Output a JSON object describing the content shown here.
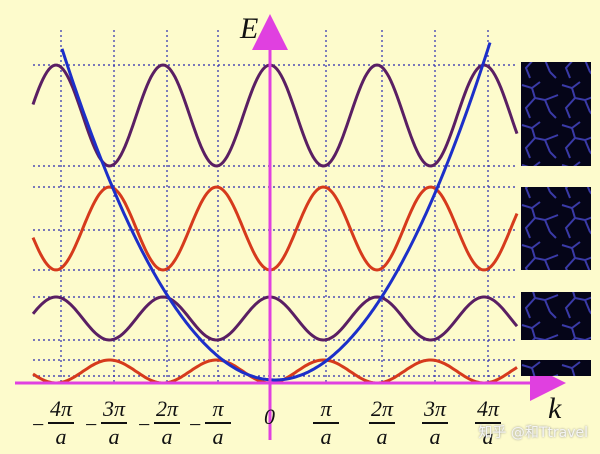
{
  "axes": {
    "y_label": "E",
    "x_label": "k",
    "origin_label": "0"
  },
  "tick_labels": [
    {
      "num": "4π",
      "den": "a",
      "neg": true
    },
    {
      "num": "3π",
      "den": "a",
      "neg": true
    },
    {
      "num": "2π",
      "den": "a",
      "neg": true
    },
    {
      "num": "π",
      "den": "a",
      "neg": true
    },
    {
      "num": "π",
      "den": "a",
      "neg": false
    },
    {
      "num": "2π",
      "den": "a",
      "neg": false
    },
    {
      "num": "3π",
      "den": "a",
      "neg": false
    },
    {
      "num": "4π",
      "den": "a",
      "neg": false
    }
  ],
  "watermark": "知乎 @和Ttravel",
  "colors": {
    "background": "#fdfbcc",
    "parabola": "#1c2fc9",
    "axis": "#e040e0",
    "wave_purple": "#5a1f63",
    "wave_red": "#d63a1c",
    "grid": "#2b2bb0",
    "panel": "#050518",
    "panel_lines": "#3a3aa8"
  }
}
